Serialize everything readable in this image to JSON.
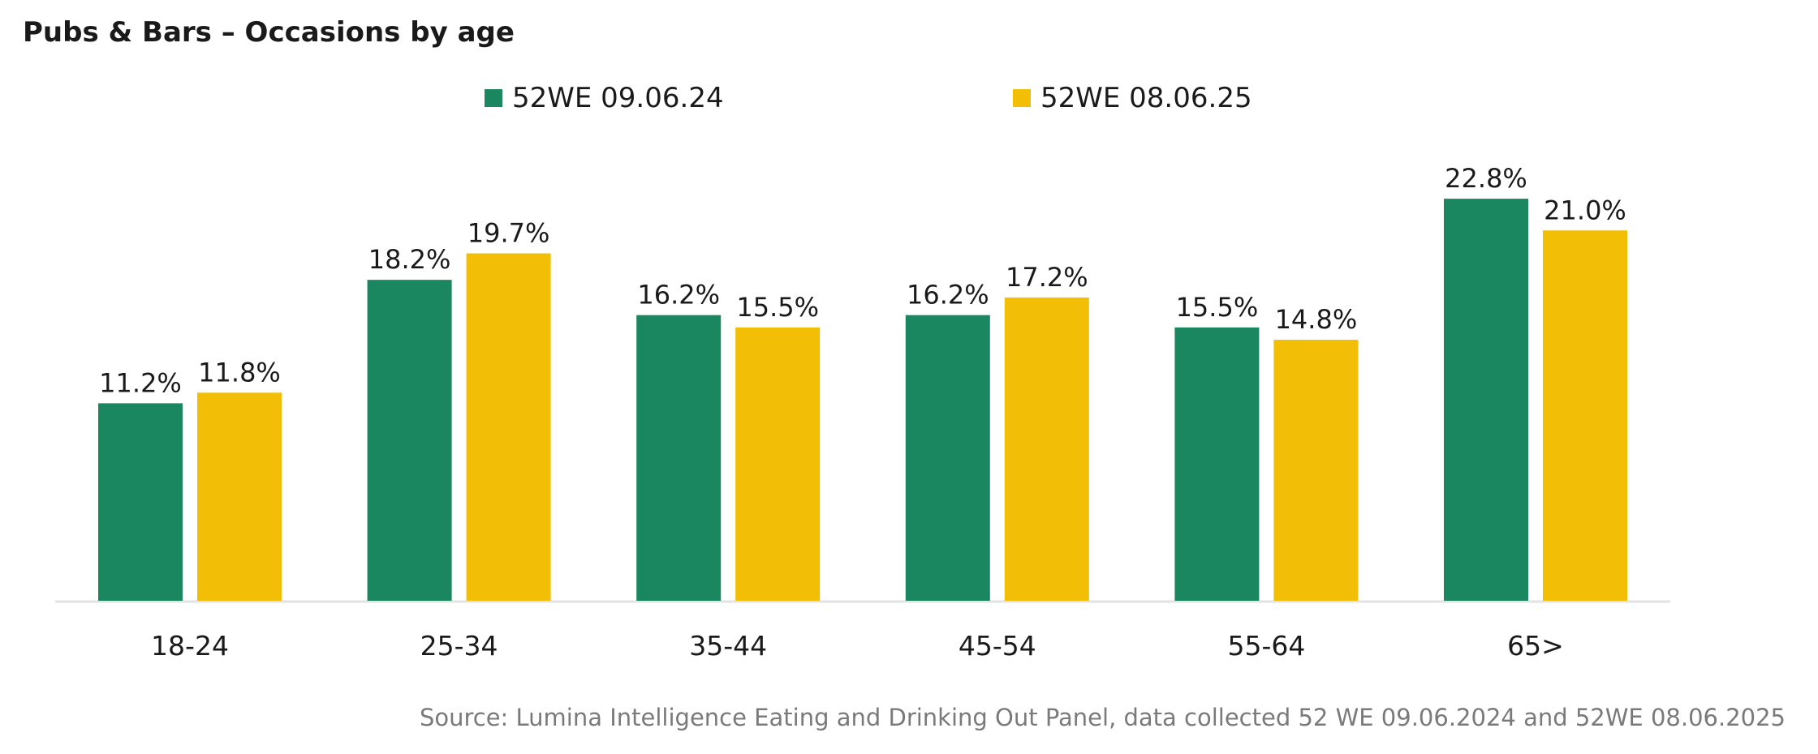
{
  "chart_data": {
    "type": "bar",
    "title": "Pubs & Bars – Occasions by age",
    "categories": [
      "18-24",
      "25-34",
      "35-44",
      "45-54",
      "55-64",
      "65>"
    ],
    "series": [
      {
        "name": "52WE 09.06.24",
        "color": "#1a8760",
        "values": [
          11.2,
          18.2,
          16.2,
          16.2,
          15.5,
          22.8
        ],
        "labels": [
          "11.2%",
          "18.2%",
          "16.2%",
          "16.2%",
          "15.5%",
          "22.8%"
        ]
      },
      {
        "name": "52WE 08.06.25",
        "color": "#f2be06",
        "values": [
          11.8,
          19.7,
          15.5,
          17.2,
          14.8,
          21.0
        ],
        "labels": [
          "11.8%",
          "19.7%",
          "15.5%",
          "17.2%",
          "14.8%",
          "21.0%"
        ]
      }
    ],
    "ylim": [
      0,
      25
    ],
    "grid": false,
    "legend_position": "top-center",
    "source": "Source: Lumina Intelligence Eating and Drinking Out Panel, data collected 52 WE 09.06.2024 and 52WE 08.06.2025"
  }
}
